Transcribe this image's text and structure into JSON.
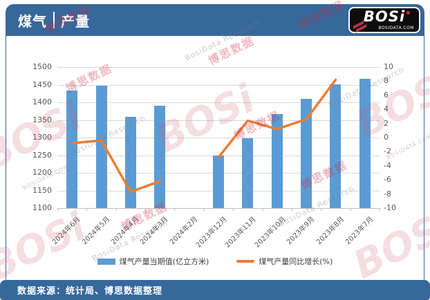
{
  "header": {
    "title_left": "煤气",
    "title_right": "产量"
  },
  "logo": {
    "text": "BOSi",
    "domain": "BOSIDATA.COM"
  },
  "watermark": {
    "logo_text": "BOSi",
    "cn_text": "博思数据",
    "en_text": "BosiData Research",
    "domain_text": "BOSIDATA.COM"
  },
  "footer": {
    "source_text": "数据来源：统计局、博思数据整理"
  },
  "colors": {
    "accent_blue": "#37689B",
    "bar_blue": "#5B9BD5",
    "line_orange": "#ED7D31"
  },
  "chart_data": {
    "type": "combo_bar_line",
    "categories": [
      "2024年6月",
      "2024年5月",
      "2024年4月",
      "2024年3月",
      "2024年2月",
      "2023年12月",
      "2023年11月",
      "2023年10月",
      "2023年9月",
      "2023年8月",
      "2023年7月"
    ],
    "series": [
      {
        "name": "煤气产量当期值(亿立方米)",
        "type": "bar",
        "axis": "left",
        "color": "#5B9BD5",
        "values": [
          1433,
          1448,
          1358,
          1390,
          null,
          1249,
          1298,
          1367,
          1410,
          1451,
          1466
        ]
      },
      {
        "name": "煤气产量同比增长(%)",
        "type": "line",
        "axis": "right",
        "color": "#ED7D31",
        "values": [
          -0.8,
          -0.4,
          -7.7,
          -6.2,
          null,
          -2.8,
          2.4,
          1.2,
          2.6,
          8.2,
          null
        ]
      }
    ],
    "left_axis": {
      "min": 1100,
      "max": 1500,
      "step": 50
    },
    "right_axis": {
      "min": -10,
      "max": 10,
      "step": 2
    },
    "grid": true,
    "legend_position": "bottom"
  }
}
